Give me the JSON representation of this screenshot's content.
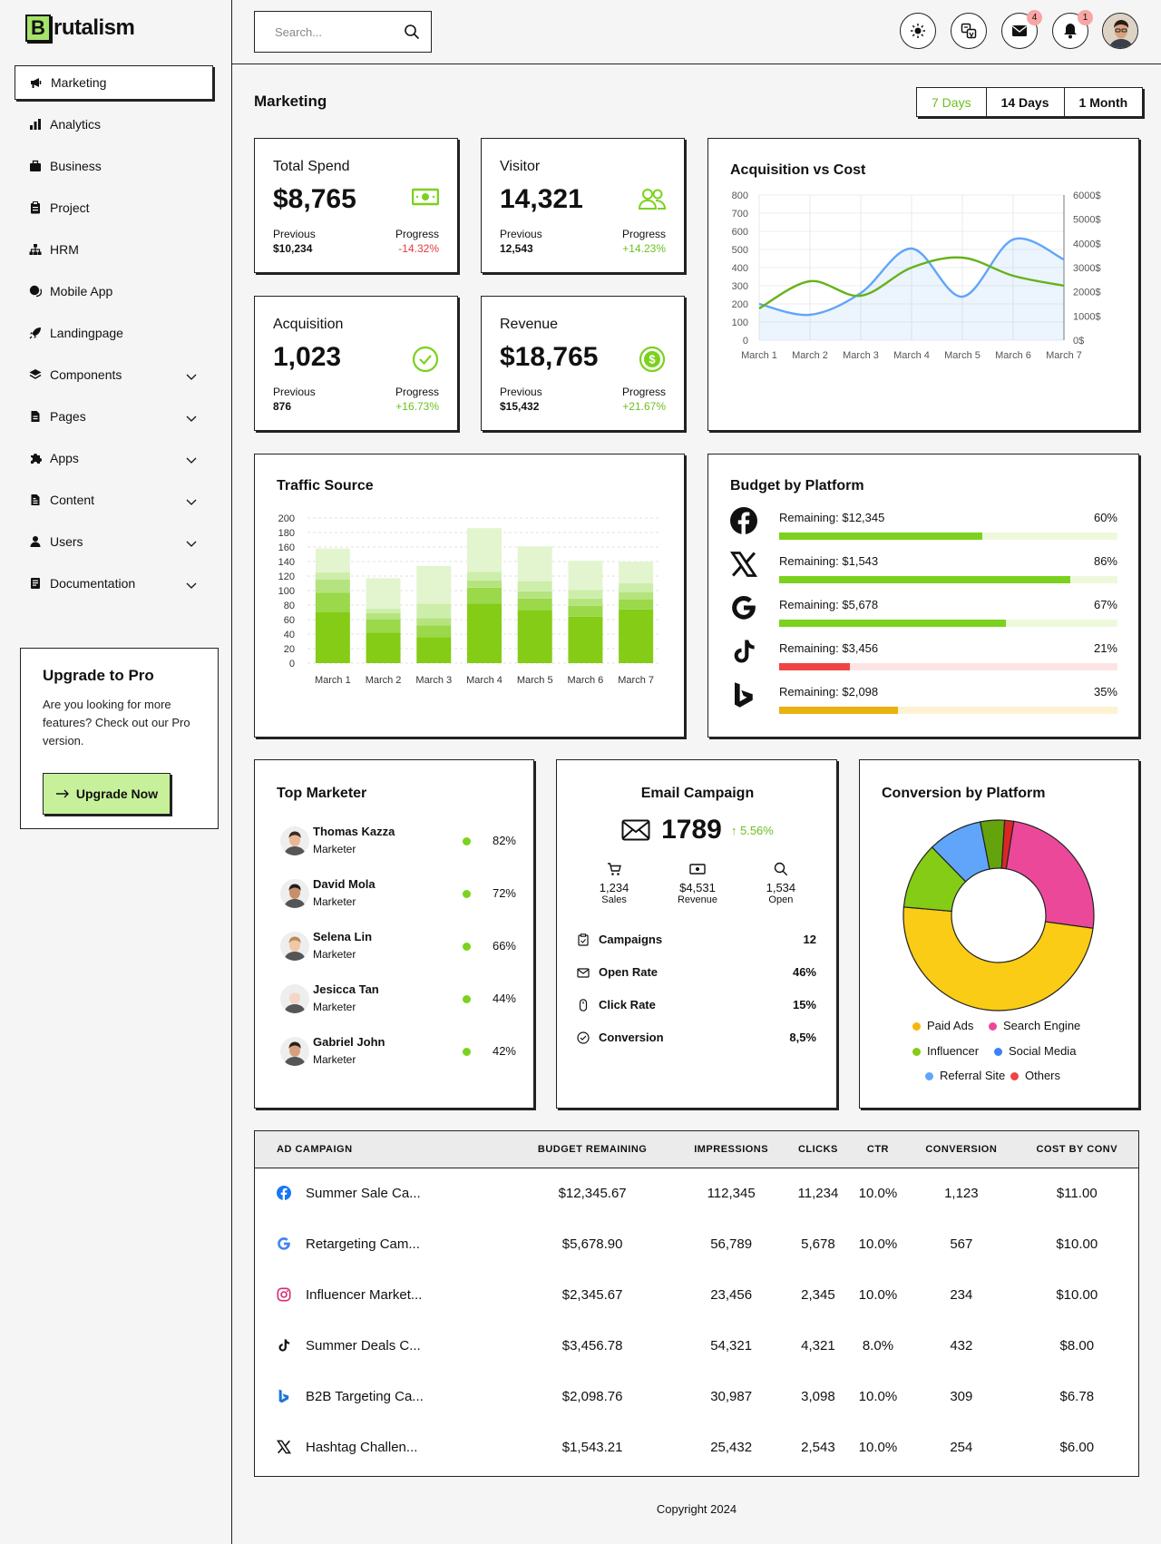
{
  "brand": {
    "letter": "B",
    "rest": "rutalism"
  },
  "sidebar": {
    "items": [
      {
        "label": "Marketing",
        "icon": "megaphone-icon",
        "active": true
      },
      {
        "label": "Analytics",
        "icon": "bar-chart-icon"
      },
      {
        "label": "Business",
        "icon": "briefcase-icon"
      },
      {
        "label": "Project",
        "icon": "clipboard-icon"
      },
      {
        "label": "HRM",
        "icon": "org-chart-icon"
      },
      {
        "label": "Mobile App",
        "icon": "chat-icon"
      },
      {
        "label": "Landingpage",
        "icon": "rocket-icon"
      },
      {
        "label": "Components",
        "icon": "layers-icon",
        "expand": true
      },
      {
        "label": "Pages",
        "icon": "file-icon",
        "expand": true
      },
      {
        "label": "Apps",
        "icon": "puzzle-icon",
        "expand": true
      },
      {
        "label": "Content",
        "icon": "document-icon",
        "expand": true
      },
      {
        "label": "Users",
        "icon": "user-icon",
        "expand": true
      },
      {
        "label": "Documentation",
        "icon": "book-icon",
        "expand": true
      }
    ]
  },
  "promo": {
    "title": "Upgrade to Pro",
    "text": "Are you looking for more features? Check out our Pro version.",
    "button": "Upgrade Now"
  },
  "topbar": {
    "search_placeholder": "Search...",
    "mail_badge": "4",
    "bell_badge": "1"
  },
  "page": {
    "title": "Marketing",
    "ranges": [
      "7 Days",
      "14 Days",
      "1 Month"
    ]
  },
  "stats": [
    {
      "title": "Total Spend",
      "value": "$8,765",
      "prev_label": "Previous",
      "prev": "$10,234",
      "prog_label": "Progress",
      "prog": "-14.32%"
    },
    {
      "title": "Visitor",
      "value": "14,321",
      "prev_label": "Previous",
      "prev": "12,543",
      "prog_label": "Progress",
      "prog": "+14.23%"
    },
    {
      "title": "Acquisition",
      "value": "1,023",
      "prev_label": "Previous",
      "prev": "876",
      "prog_label": "Progress",
      "prog": "+16.73%"
    },
    {
      "title": "Revenue",
      "value": "$18,765",
      "prev_label": "Previous",
      "prev": "$15,432",
      "prog_label": "Progress",
      "prog": "+21.67%"
    }
  ],
  "budget": {
    "title": "Budget by Platform",
    "rows": [
      {
        "platform": "facebook-icon",
        "label": "Remaining: $12,345",
        "pct": "60%",
        "fill": 0.6,
        "color": "#7bd21e",
        "track": "#eef9dc"
      },
      {
        "platform": "x-icon",
        "label": "Remaining: $1,543",
        "pct": "86%",
        "fill": 0.86,
        "color": "#7bd21e",
        "track": "#eef9dc"
      },
      {
        "platform": "google-icon",
        "label": "Remaining: $5,678",
        "pct": "67%",
        "fill": 0.67,
        "color": "#7bd21e",
        "track": "#eef9dc"
      },
      {
        "platform": "tiktok-icon",
        "label": "Remaining: $3,456",
        "pct": "21%",
        "fill": 0.21,
        "color": "#ef4444",
        "track": "#fde4e4"
      },
      {
        "platform": "bing-icon",
        "label": "Remaining: $2,098",
        "pct": "35%",
        "fill": 0.35,
        "color": "#e9b10f",
        "track": "#fdf3d3"
      }
    ]
  },
  "marketers": {
    "title": "Top Marketer",
    "rows": [
      {
        "name": "Thomas Kazza",
        "role": "Marketer",
        "pct": "82%"
      },
      {
        "name": "David Mola",
        "role": "Marketer",
        "pct": "72%"
      },
      {
        "name": "Selena Lin",
        "role": "Marketer",
        "pct": "66%"
      },
      {
        "name": "Jesicca Tan",
        "role": "Marketer",
        "pct": "44%"
      },
      {
        "name": "Gabriel John",
        "role": "Marketer",
        "pct": "42%"
      }
    ]
  },
  "email": {
    "title": "Email Campaign",
    "total": "1789",
    "change": "↑ 5.56%",
    "kpis": [
      {
        "value": "1,234",
        "label": "Sales"
      },
      {
        "value": "$4,531",
        "label": "Revenue"
      },
      {
        "value": "1,534",
        "label": "Open"
      }
    ],
    "rows": [
      {
        "label": "Campaigns",
        "value": "12"
      },
      {
        "label": "Open Rate",
        "value": "46%"
      },
      {
        "label": "Click Rate",
        "value": "15%"
      },
      {
        "label": "Conversion",
        "value": "8,5%"
      }
    ]
  },
  "table": {
    "headers": [
      "AD CAMPAIGN",
      "BUDGET REMAINING",
      "IMPRESSIONS",
      "CLICKS",
      "CTR",
      "CONVERSION",
      "COST BY CONV"
    ],
    "rows": [
      {
        "icon": "facebook-icon",
        "name": "Summer Sale Ca...",
        "budget": "$12,345.67",
        "impr": "112,345",
        "clicks": "11,234",
        "ctr": "10.0%",
        "conv": "1,123",
        "cost": "$11.00"
      },
      {
        "icon": "google-icon",
        "name": "Retargeting Cam...",
        "budget": "$5,678.90",
        "impr": "56,789",
        "clicks": "5,678",
        "ctr": "10.0%",
        "conv": "567",
        "cost": "$10.00"
      },
      {
        "icon": "instagram-icon",
        "name": "Influencer Market...",
        "budget": "$2,345.67",
        "impr": "23,456",
        "clicks": "2,345",
        "ctr": "10.0%",
        "conv": "234",
        "cost": "$10.00"
      },
      {
        "icon": "tiktok-icon",
        "name": "Summer Deals C...",
        "budget": "$3,456.78",
        "impr": "54,321",
        "clicks": "4,321",
        "ctr": "8.0%",
        "conv": "432",
        "cost": "$8.00"
      },
      {
        "icon": "bing-icon",
        "name": "B2B Targeting Ca...",
        "budget": "$2,098.76",
        "impr": "30,987",
        "clicks": "3,098",
        "ctr": "10.0%",
        "conv": "309",
        "cost": "$6.78"
      },
      {
        "icon": "x-icon",
        "name": "Hashtag Challen...",
        "budget": "$1,543.21",
        "impr": "25,432",
        "clicks": "2,543",
        "ctr": "10.0%",
        "conv": "254",
        "cost": "$6.00"
      }
    ]
  },
  "footer": {
    "copyright": "Copyright 2024"
  },
  "chart_data": [
    {
      "type": "line",
      "title": "Acquisition vs Cost",
      "categories": [
        "March 1",
        "March 2",
        "March 3",
        "March 4",
        "March 5",
        "March 6",
        "March 7"
      ],
      "y_left": {
        "ticks": [
          "800",
          "700",
          "600",
          "500",
          "400",
          "300",
          "200",
          "100",
          "0"
        ],
        "range": [
          0,
          800
        ]
      },
      "y_right": {
        "ticks": [
          "6000$",
          "5000$",
          "4000$",
          "3000$",
          "2000$",
          "1000$",
          "0$"
        ],
        "range": [
          0,
          6000
        ]
      },
      "series": [
        {
          "color": "#60a5fa",
          "axis": "left",
          "values": [
            200,
            140,
            260,
            505,
            240,
            555,
            445
          ]
        },
        {
          "color": "#65b31a",
          "axis": "left",
          "values": [
            175,
            325,
            245,
            400,
            455,
            355,
            300
          ]
        }
      ]
    },
    {
      "type": "bar",
      "stacked": true,
      "title": "Traffic Source",
      "categories": [
        "March 1",
        "March 2",
        "March 3",
        "March 4",
        "March 5",
        "March 6",
        "March 7"
      ],
      "y_ticks": [
        "200",
        "180",
        "160",
        "140",
        "120",
        "100",
        "80",
        "60",
        "40",
        "20",
        "0"
      ],
      "ylim": [
        0,
        200
      ],
      "colors": [
        "#84cc16",
        "#9bd84a",
        "#b5e47f",
        "#cdeeab",
        "#e3f5cf"
      ],
      "series": [
        {
          "values": [
            70,
            42,
            36,
            82,
            73,
            64,
            74
          ]
        },
        {
          "values": [
            27,
            18,
            16,
            22,
            16,
            15,
            14
          ]
        },
        {
          "values": [
            18,
            9,
            10,
            10,
            10,
            10,
            10
          ]
        },
        {
          "values": [
            10,
            6,
            20,
            12,
            14,
            12,
            12
          ]
        },
        {
          "values": [
            33,
            42,
            52,
            60,
            48,
            40,
            30
          ]
        }
      ]
    },
    {
      "type": "pie",
      "donut": true,
      "title": "Conversion by Platform",
      "labels": [
        "Paid Ads",
        "Search Engine",
        "Influencer",
        "Social Media",
        "Referral Site",
        "Others"
      ],
      "colors": [
        "#facc15",
        "#ec4899",
        "#84cc16",
        "#60a5fa",
        "#65a30d",
        "#dc2626"
      ],
      "values": [
        48,
        24,
        11,
        9,
        4,
        1.5
      ],
      "legend_colors": [
        "#f5b80a",
        "#ec4899",
        "#84cc16",
        "#3b82f6",
        "#60a5fa",
        "#ef4444"
      ]
    }
  ]
}
